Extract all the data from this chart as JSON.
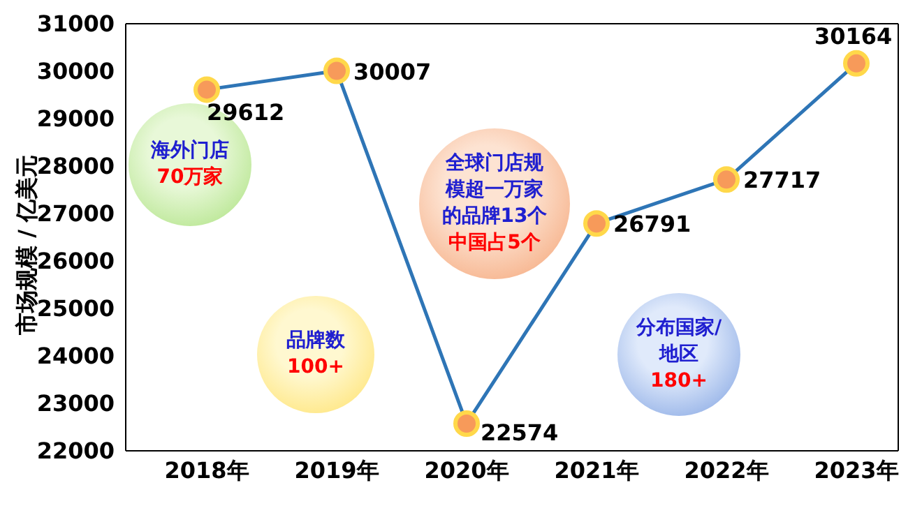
{
  "chart_data": {
    "type": "line",
    "ylabel": "市场规模 / 亿美元",
    "categories": [
      "2018年",
      "2019年",
      "2020年",
      "2021年",
      "2022年",
      "2023年"
    ],
    "series": [
      {
        "color": "#2e75b6",
        "values": [
          29612,
          30007,
          22574,
          26791,
          27717,
          30164
        ]
      }
    ],
    "ylim": [
      22000,
      31000
    ],
    "yticks": [
      22000,
      23000,
      24000,
      25000,
      26000,
      27000,
      28000,
      29000,
      30000,
      31000
    ],
    "grid": false,
    "legend": false,
    "marker": "circle",
    "line_style": "solid",
    "data_labels": true,
    "annotations": [
      "海外门店",
      "70万家",
      "品牌数",
      "100+",
      "全球门店规模超一万家的品牌13个",
      "中国占5个",
      "分布国家/地区",
      "180+"
    ]
  }
}
